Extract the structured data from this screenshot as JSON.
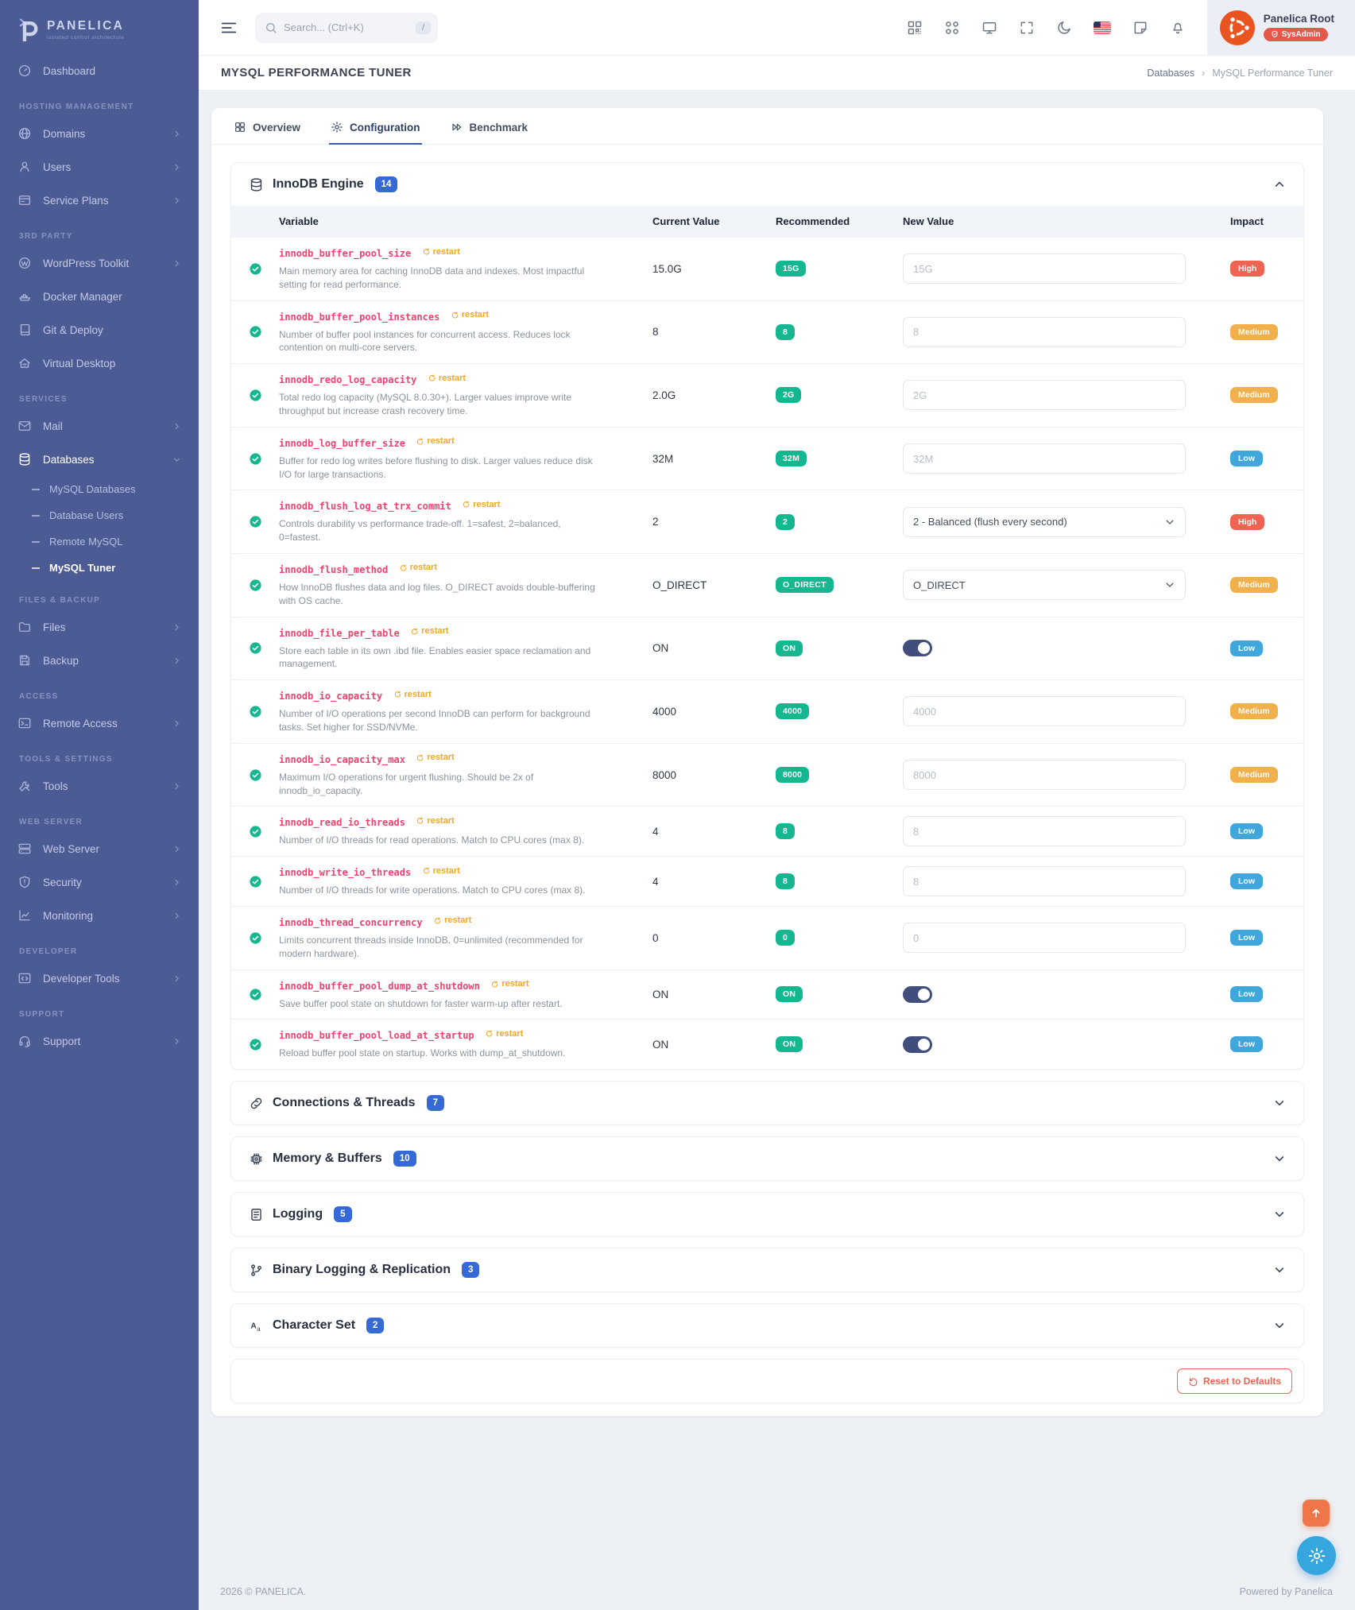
{
  "colors": {
    "sidebar_bg": "#4d5b94",
    "accent_blue": "#3569d6",
    "badge_green": "#15b791",
    "impact_high": "#ee6352",
    "impact_medium": "#f2b04d",
    "impact_low": "#3fa7dc",
    "variable_pink": "#f1426e",
    "restart_orange": "#f5a623",
    "avatar_orange": "#e95420",
    "sysadmin_red": "#e4584c",
    "scroll_top_orange": "#ef7648",
    "fab_blue": "#35a7de"
  },
  "brand": {
    "name": "PANELICA",
    "tagline": "isolated control architecture"
  },
  "topbar": {
    "search": {
      "placeholder": "Search... (Ctrl+K)",
      "kbd": "/"
    },
    "icons": [
      "qr-icon",
      "apps-grid-icon",
      "monitor-icon",
      "fullscreen-icon",
      "moon-icon",
      "us-flag-icon",
      "note-icon",
      "bell-icon"
    ],
    "user": {
      "name": "Panelica Root",
      "role_badge": "SysAdmin"
    }
  },
  "page": {
    "title": "MYSQL PERFORMANCE TUNER",
    "breadcrumb": [
      "Databases",
      "MySQL Performance Tuner"
    ]
  },
  "sidebar": {
    "sections": [
      {
        "label": null,
        "items": [
          {
            "icon": "dashboard-icon",
            "label": "Dashboard"
          }
        ]
      },
      {
        "label": "HOSTING MANAGEMENT",
        "items": [
          {
            "icon": "globe-icon",
            "label": "Domains",
            "chevron": true
          },
          {
            "icon": "users-icon",
            "label": "Users",
            "chevron": true
          },
          {
            "icon": "service-plans-icon",
            "label": "Service Plans",
            "chevron": true
          }
        ]
      },
      {
        "label": "3RD PARTY",
        "items": [
          {
            "icon": "wordpress-icon",
            "label": "WordPress Toolkit",
            "chevron": true
          },
          {
            "icon": "docker-icon",
            "label": "Docker Manager"
          },
          {
            "icon": "git-deploy-icon",
            "label": "Git & Deploy"
          },
          {
            "icon": "virtual-desktop-icon",
            "label": "Virtual Desktop"
          }
        ]
      },
      {
        "label": "SERVICES",
        "items": [
          {
            "icon": "mail-icon",
            "label": "Mail",
            "chevron": true
          },
          {
            "icon": "database-icon",
            "label": "Databases",
            "open": true,
            "children": [
              "MySQL Databases",
              "Database Users",
              "Remote MySQL",
              "MySQL Tuner"
            ],
            "active_child": "MySQL Tuner"
          }
        ]
      },
      {
        "label": "FILES & BACKUP",
        "items": [
          {
            "icon": "files-icon",
            "label": "Files",
            "chevron": true
          },
          {
            "icon": "backup-icon",
            "label": "Backup",
            "chevron": true
          }
        ]
      },
      {
        "label": "ACCESS",
        "items": [
          {
            "icon": "remote-access-icon",
            "label": "Remote Access",
            "chevron": true
          }
        ]
      },
      {
        "label": "TOOLS & SETTINGS",
        "items": [
          {
            "icon": "tools-icon",
            "label": "Tools",
            "chevron": true
          }
        ]
      },
      {
        "label": "WEB SERVER",
        "items": [
          {
            "icon": "web-server-icon",
            "label": "Web Server",
            "chevron": true
          },
          {
            "icon": "security-shield-icon",
            "label": "Security",
            "chevron": true
          },
          {
            "icon": "monitoring-icon",
            "label": "Monitoring",
            "chevron": true
          }
        ]
      },
      {
        "label": "DEVELOPER",
        "items": [
          {
            "icon": "developer-tools-icon",
            "label": "Developer Tools",
            "chevron": true
          }
        ]
      },
      {
        "label": "SUPPORT",
        "items": [
          {
            "icon": "support-headset-icon",
            "label": "Support",
            "chevron": true
          }
        ]
      }
    ]
  },
  "tabs": [
    {
      "icon": "overview-grid-icon",
      "label": "Overview",
      "active": false
    },
    {
      "icon": "gear-icon",
      "label": "Configuration",
      "active": true
    },
    {
      "icon": "benchmark-icon",
      "label": "Benchmark",
      "active": false
    }
  ],
  "table": {
    "headers": [
      "Variable",
      "Current Value",
      "Recommended",
      "New Value",
      "Impact"
    ]
  },
  "innodb_section": {
    "icon": "database-icon",
    "title": "InnoDB Engine",
    "count": "14",
    "rows": [
      {
        "name": "innodb_buffer_pool_size",
        "restart": "restart",
        "description": "Main memory area for caching InnoDB data and indexes. Most impactful setting for read performance.",
        "current": "15.0G",
        "recommended": "15G",
        "control": {
          "type": "input",
          "placeholder": "15G"
        },
        "impact": "High"
      },
      {
        "name": "innodb_buffer_pool_instances",
        "restart": "restart",
        "description": "Number of buffer pool instances for concurrent access. Reduces lock contention on multi-core servers.",
        "current": "8",
        "recommended": "8",
        "control": {
          "type": "input",
          "placeholder": "8"
        },
        "impact": "Medium"
      },
      {
        "name": "innodb_redo_log_capacity",
        "restart": "restart",
        "description": "Total redo log capacity (MySQL 8.0.30+). Larger values improve write throughput but increase crash recovery time.",
        "current": "2.0G",
        "recommended": "2G",
        "control": {
          "type": "input",
          "placeholder": "2G"
        },
        "impact": "Medium"
      },
      {
        "name": "innodb_log_buffer_size",
        "restart": "restart",
        "description": "Buffer for redo log writes before flushing to disk. Larger values reduce disk I/O for large transactions.",
        "current": "32M",
        "recommended": "32M",
        "control": {
          "type": "input",
          "placeholder": "32M"
        },
        "impact": "Low"
      },
      {
        "name": "innodb_flush_log_at_trx_commit",
        "restart": "restart",
        "description": "Controls durability vs performance trade-off. 1=safest, 2=balanced, 0=fastest.",
        "current": "2",
        "recommended": "2",
        "control": {
          "type": "select",
          "value": "2 - Balanced (flush every second)"
        },
        "impact": "High"
      },
      {
        "name": "innodb_flush_method",
        "restart": "restart",
        "description": "How InnoDB flushes data and log files. O_DIRECT avoids double-buffering with OS cache.",
        "current": "O_DIRECT",
        "recommended": "O_DIRECT",
        "control": {
          "type": "select",
          "value": "O_DIRECT"
        },
        "impact": "Medium"
      },
      {
        "name": "innodb_file_per_table",
        "restart": "restart",
        "description": "Store each table in its own .ibd file. Enables easier space reclamation and management.",
        "current": "ON",
        "recommended": "ON",
        "control": {
          "type": "toggle",
          "on": true
        },
        "impact": "Low"
      },
      {
        "name": "innodb_io_capacity",
        "restart": "restart",
        "description": "Number of I/O operations per second InnoDB can perform for background tasks. Set higher for SSD/NVMe.",
        "current": "4000",
        "recommended": "4000",
        "control": {
          "type": "input",
          "placeholder": "4000"
        },
        "impact": "Medium"
      },
      {
        "name": "innodb_io_capacity_max",
        "restart": "restart",
        "description": "Maximum I/O operations for urgent flushing. Should be 2x of innodb_io_capacity.",
        "current": "8000",
        "recommended": "8000",
        "control": {
          "type": "input",
          "placeholder": "8000"
        },
        "impact": "Medium"
      },
      {
        "name": "innodb_read_io_threads",
        "restart": "restart",
        "description": "Number of I/O threads for read operations. Match to CPU cores (max 8).",
        "current": "4",
        "recommended": "8",
        "control": {
          "type": "input",
          "placeholder": "8"
        },
        "impact": "Low"
      },
      {
        "name": "innodb_write_io_threads",
        "restart": "restart",
        "description": "Number of I/O threads for write operations. Match to CPU cores (max 8).",
        "current": "4",
        "recommended": "8",
        "control": {
          "type": "input",
          "placeholder": "8"
        },
        "impact": "Low"
      },
      {
        "name": "innodb_thread_concurrency",
        "restart": "restart",
        "description": "Limits concurrent threads inside InnoDB. 0=unlimited (recommended for modern hardware).",
        "current": "0",
        "recommended": "0",
        "control": {
          "type": "input",
          "placeholder": "0"
        },
        "impact": "Low"
      },
      {
        "name": "innodb_buffer_pool_dump_at_shutdown",
        "restart": "restart",
        "description": "Save buffer pool state on shutdown for faster warm-up after restart.",
        "current": "ON",
        "recommended": "ON",
        "control": {
          "type": "toggle",
          "on": true
        },
        "impact": "Low"
      },
      {
        "name": "innodb_buffer_pool_load_at_startup",
        "restart": "restart",
        "description": "Reload buffer pool state on startup. Works with dump_at_shutdown.",
        "current": "ON",
        "recommended": "ON",
        "control": {
          "type": "toggle",
          "on": true
        },
        "impact": "Low"
      }
    ]
  },
  "collapsed_sections": [
    {
      "icon": "link-icon",
      "title": "Connections & Threads",
      "count": "7"
    },
    {
      "icon": "memory-chip-icon",
      "title": "Memory & Buffers",
      "count": "10"
    },
    {
      "icon": "log-file-icon",
      "title": "Logging",
      "count": "5"
    },
    {
      "icon": "git-branch-icon",
      "title": "Binary Logging & Replication",
      "count": "3"
    },
    {
      "icon": "charset-icon",
      "title": "Character Set",
      "count": "2"
    }
  ],
  "reset": {
    "label": "Reset to Defaults",
    "icon": "reset-icon"
  },
  "floating_buttons": {
    "scroll_top_icon": "arrow-up-icon",
    "settings_icon": "gear-icon"
  },
  "footer": {
    "left": "2026 © PANELICA.",
    "right": "Powered by Panelica"
  }
}
